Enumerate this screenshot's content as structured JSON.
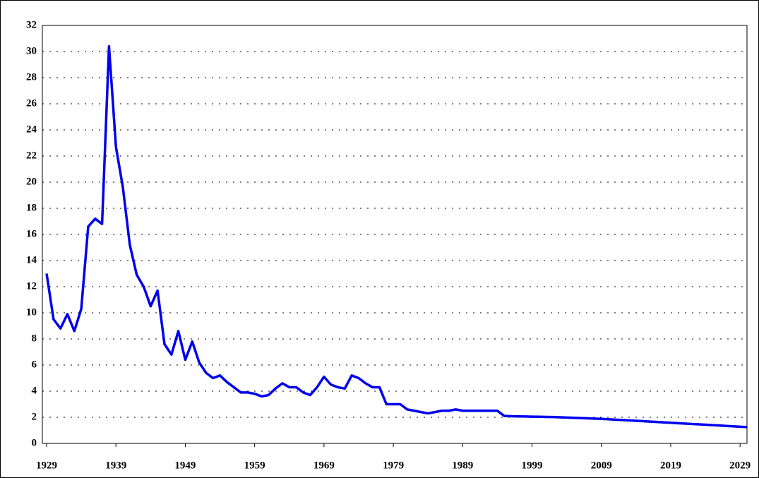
{
  "chart_data": {
    "type": "line",
    "x": [
      1929,
      1930,
      1931,
      1932,
      1933,
      1934,
      1935,
      1936,
      1937,
      1938,
      1939,
      1940,
      1941,
      1942,
      1943,
      1944,
      1945,
      1946,
      1947,
      1948,
      1949,
      1950,
      1951,
      1952,
      1953,
      1954,
      1955,
      1956,
      1957,
      1958,
      1959,
      1960,
      1961,
      1962,
      1963,
      1964,
      1965,
      1966,
      1967,
      1968,
      1969,
      1970,
      1971,
      1972,
      1973,
      1974,
      1975,
      1976,
      1977,
      1978,
      1979,
      1980,
      1981,
      1982,
      1983,
      1984,
      1985,
      1986,
      1987,
      1988,
      1989,
      1990,
      1991,
      1992,
      1993,
      1994,
      1995,
      1996,
      1997,
      1998,
      1999,
      2000,
      2001,
      2002,
      2003,
      2004,
      2005,
      2006,
      2007,
      2008,
      2009,
      2010,
      2011,
      2012,
      2013,
      2014,
      2015,
      2016,
      2017,
      2018,
      2019,
      2020,
      2021,
      2022,
      2023,
      2024,
      2025,
      2026,
      2027,
      2028,
      2029,
      2030
    ],
    "series": [
      {
        "color": "#0000ee",
        "values": [
          13.0,
          9.5,
          8.8,
          9.9,
          8.6,
          10.3,
          16.6,
          17.2,
          16.8,
          30.4,
          22.7,
          19.6,
          15.2,
          12.9,
          12.0,
          10.5,
          11.7,
          7.6,
          6.8,
          8.6,
          6.4,
          7.8,
          6.2,
          5.4,
          5.0,
          5.2,
          4.7,
          4.3,
          3.9,
          3.9,
          3.8,
          3.6,
          3.7,
          4.2,
          4.6,
          4.3,
          4.3,
          3.9,
          3.7,
          4.3,
          5.1,
          4.5,
          4.3,
          4.2,
          5.2,
          5.0,
          4.6,
          4.3,
          4.3,
          3.0,
          3.0,
          3.0,
          2.6,
          2.5,
          2.4,
          2.3,
          2.4,
          2.5,
          2.5,
          2.6,
          2.5,
          2.5,
          2.5,
          2.5,
          2.5,
          2.5,
          2.1,
          2.08,
          2.07,
          2.06,
          2.05,
          2.04,
          2.03,
          2.02,
          2.0,
          1.98,
          1.96,
          1.94,
          1.92,
          1.9,
          1.88,
          1.85,
          1.82,
          1.79,
          1.76,
          1.73,
          1.7,
          1.67,
          1.64,
          1.61,
          1.58,
          1.55,
          1.52,
          1.49,
          1.46,
          1.43,
          1.4,
          1.37,
          1.34,
          1.31,
          1.28,
          1.25
        ]
      }
    ],
    "xlim": [
      1929,
      2030
    ],
    "xticks": [
      1929,
      1939,
      1949,
      1959,
      1969,
      1979,
      1989,
      1999,
      2009,
      2019,
      2029
    ],
    "ylim": [
      0,
      32
    ],
    "yticks": [
      0,
      2,
      4,
      6,
      8,
      10,
      12,
      14,
      16,
      18,
      20,
      22,
      24,
      26,
      28,
      30,
      32
    ],
    "grid": true
  }
}
